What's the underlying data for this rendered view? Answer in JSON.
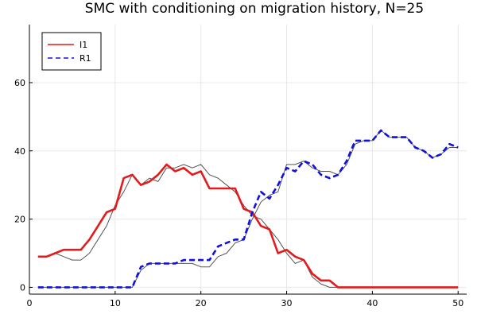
{
  "chart_data": {
    "type": "line",
    "title": "SMC with conditioning on migration history, N=25",
    "xlabel": "",
    "ylabel": "",
    "xlim": [
      0,
      51
    ],
    "ylim": [
      -2,
      77
    ],
    "xticks": [
      0,
      10,
      20,
      30,
      40,
      50
    ],
    "yticks": [
      0,
      20,
      40,
      60
    ],
    "grid": true,
    "legend_position": "top-left",
    "x": [
      1,
      2,
      3,
      4,
      5,
      6,
      7,
      8,
      9,
      10,
      11,
      12,
      13,
      14,
      15,
      16,
      17,
      18,
      19,
      20,
      21,
      22,
      23,
      24,
      25,
      26,
      27,
      28,
      29,
      30,
      31,
      32,
      33,
      34,
      35,
      36,
      37,
      38,
      39,
      40,
      41,
      42,
      43,
      44,
      45,
      46,
      47,
      48,
      49,
      50
    ],
    "series": [
      {
        "name": "I1",
        "color": "#e41a1c",
        "style": "solid",
        "values": [
          9,
          9,
          10,
          11,
          11,
          11,
          14,
          18,
          22,
          23,
          32,
          33,
          30,
          31,
          33,
          36,
          34,
          35,
          33,
          34,
          29,
          29,
          29,
          29,
          23,
          22,
          18,
          17,
          10,
          11,
          9,
          8,
          4,
          2,
          2,
          0,
          0,
          0,
          0,
          0,
          0,
          0,
          0,
          0,
          0,
          0,
          0,
          0,
          0,
          0
        ]
      },
      {
        "name": "R1",
        "color": "#1010e0",
        "style": "dashed",
        "values": [
          0,
          0,
          0,
          0,
          0,
          0,
          0,
          0,
          0,
          0,
          0,
          0,
          6,
          7,
          7,
          7,
          7,
          8,
          8,
          8,
          8,
          12,
          13,
          14,
          14,
          22,
          28,
          26,
          30,
          35,
          34,
          37,
          36,
          33,
          32,
          33,
          37,
          43,
          43,
          43,
          46,
          44,
          44,
          44,
          41,
          40,
          38,
          39,
          42,
          41
        ]
      },
      {
        "name": "",
        "color": "#555555",
        "style": "thin",
        "values": [
          9,
          9,
          10,
          9,
          8,
          8,
          10,
          14,
          18,
          24,
          28,
          33,
          30,
          32,
          31,
          35,
          35,
          36,
          35,
          36,
          33,
          32,
          30,
          28,
          24,
          21,
          20,
          17,
          14,
          10,
          7,
          8,
          3,
          1,
          0,
          0,
          0,
          0,
          0,
          0,
          0,
          0,
          0,
          0,
          0,
          0,
          0,
          0,
          0,
          0
        ]
      },
      {
        "name": "",
        "color": "#555555",
        "style": "thin",
        "values": [
          0,
          0,
          0,
          0,
          0,
          0,
          0,
          0,
          0,
          0,
          0,
          0,
          5,
          7,
          7,
          7,
          7,
          7,
          7,
          6,
          6,
          9,
          10,
          13,
          14,
          20,
          25,
          27,
          28,
          36,
          36,
          37,
          35,
          34,
          34,
          33,
          36,
          42,
          43,
          43,
          46,
          44,
          44,
          44,
          41,
          40,
          38,
          39,
          41,
          41
        ]
      }
    ]
  }
}
